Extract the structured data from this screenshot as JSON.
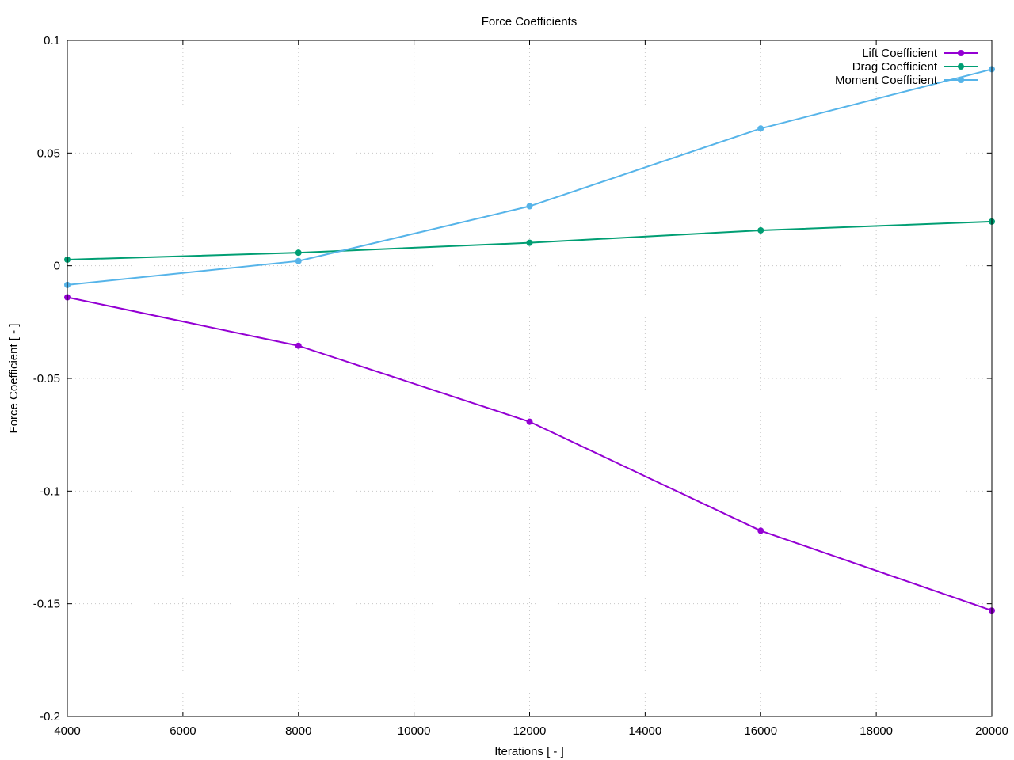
{
  "chart_data": {
    "type": "line",
    "title": "Force Coefficients",
    "xlabel": "Iterations [ - ]",
    "ylabel": "Force Coefficient [ - ]",
    "xlim": [
      4000,
      20000
    ],
    "ylim": [
      -0.2,
      0.1
    ],
    "x_ticks": [
      4000,
      6000,
      8000,
      10000,
      12000,
      14000,
      16000,
      18000,
      20000
    ],
    "x_tick_labels": [
      "4000",
      "6000",
      "8000",
      "10000",
      "12000",
      "14000",
      "16000",
      "18000",
      "20000"
    ],
    "y_ticks": [
      0.1,
      0.05,
      0,
      -0.05,
      -0.1,
      -0.15,
      -0.2
    ],
    "y_tick_labels": [
      "0.1",
      "0.05",
      "0",
      "-0.05",
      "-0.1",
      "-0.15",
      "-0.2"
    ],
    "grid": true,
    "legend_position": "top-right",
    "x": [
      4000,
      8000,
      12000,
      16000,
      20000
    ],
    "series": [
      {
        "name": "Lift Coefficient",
        "color": "#9400d3",
        "values": [
          -0.014,
          -0.0355,
          -0.0692,
          -0.1176,
          -0.153
        ]
      },
      {
        "name": "Drag Coefficient",
        "color": "#009e73",
        "values": [
          0.0027,
          0.0058,
          0.0102,
          0.0157,
          0.0196
        ]
      },
      {
        "name": "Moment Coefficient",
        "color": "#56b4e9",
        "values": [
          -0.0085,
          0.0021,
          0.0264,
          0.0609,
          0.0872
        ]
      }
    ]
  }
}
